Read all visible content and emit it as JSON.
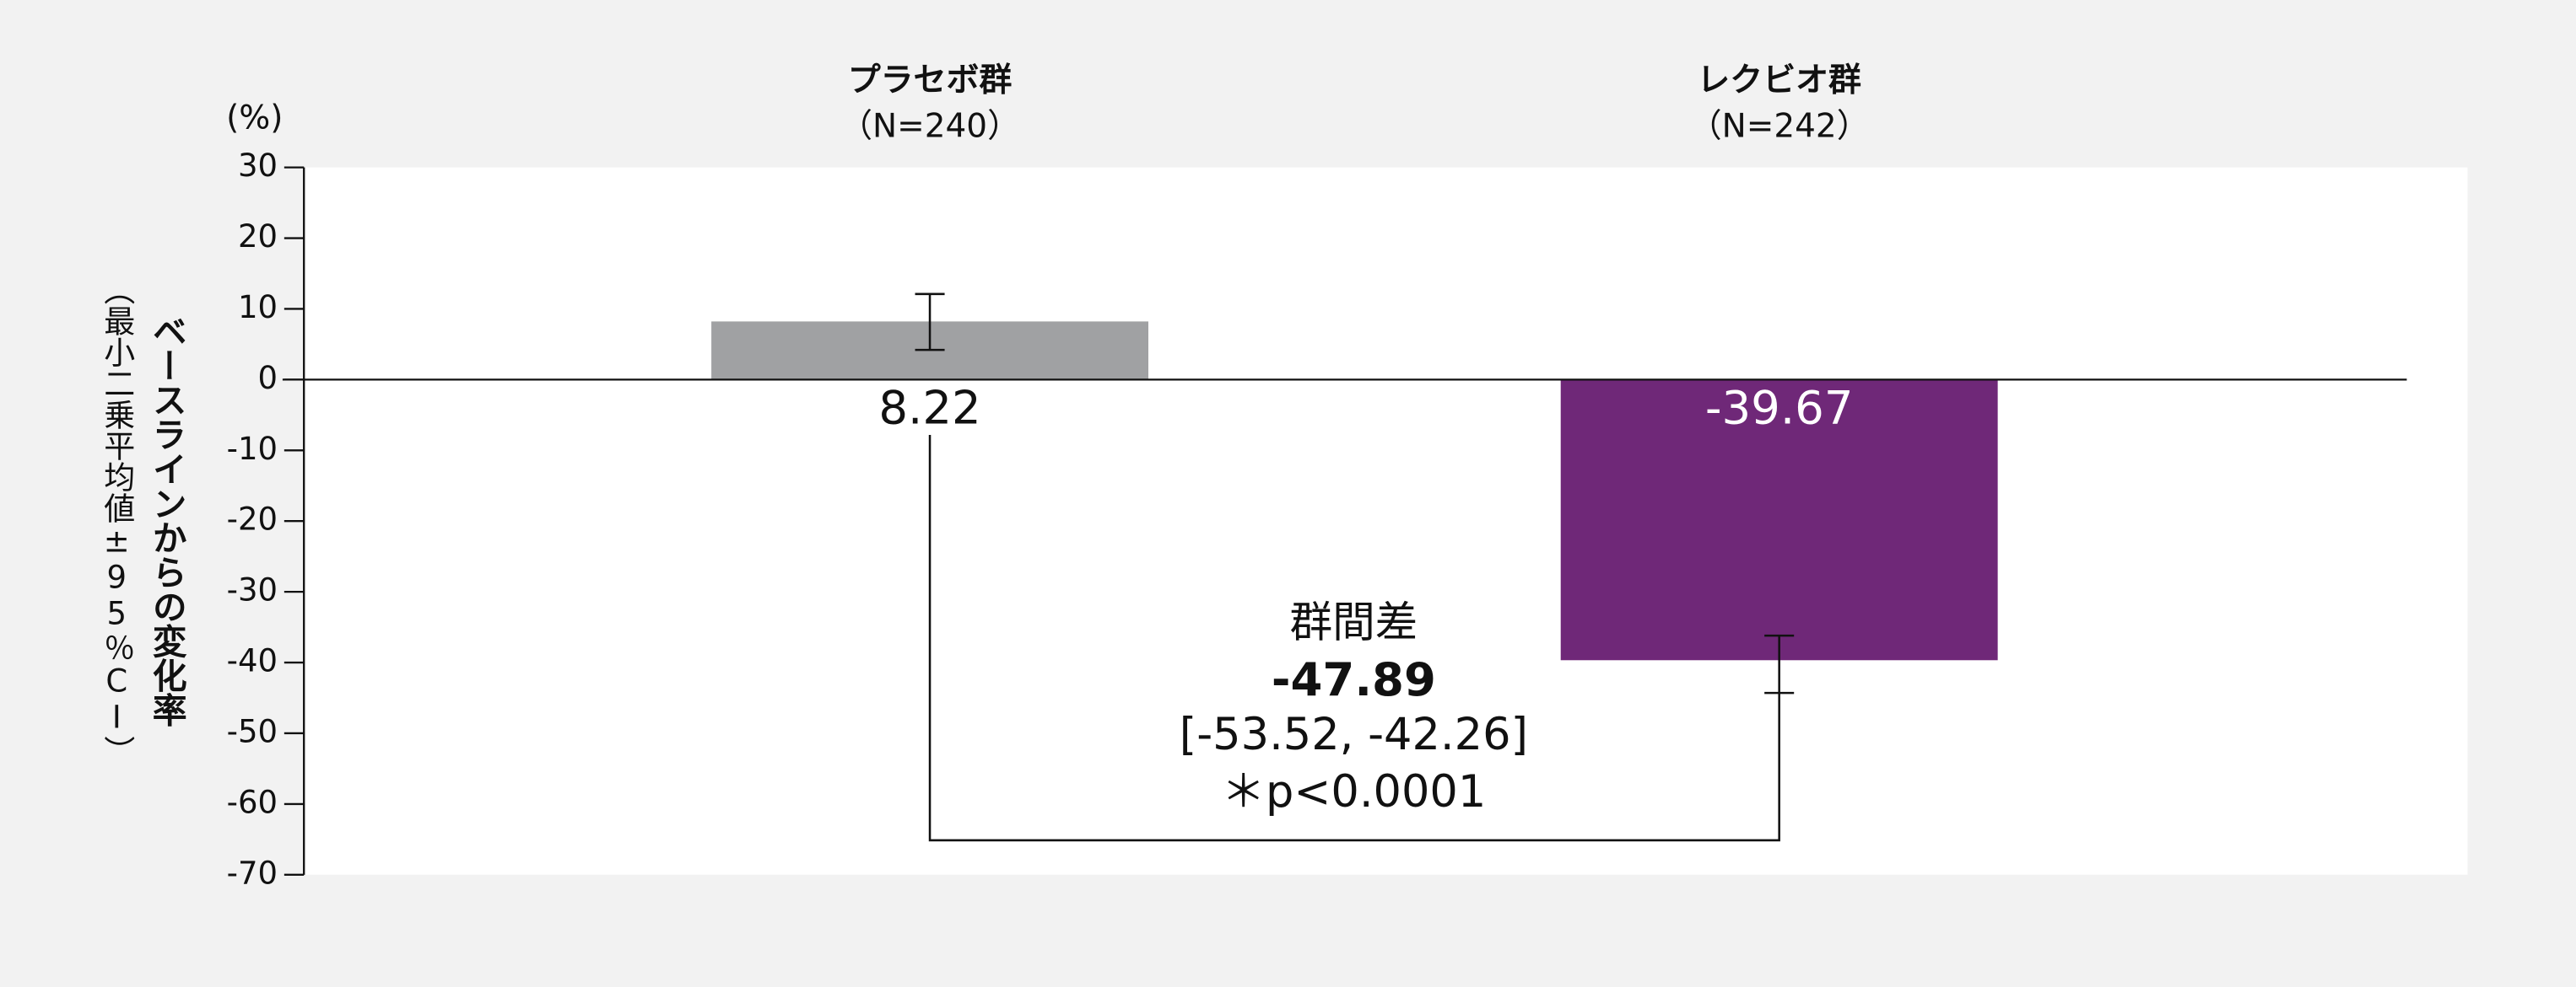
{
  "chart_data": {
    "type": "bar",
    "categories": [
      "プラセボ群",
      "レクビオ群"
    ],
    "category_sublabels": [
      "（N=240）",
      "（N=242）"
    ],
    "values": [
      8.22,
      -39.67
    ],
    "error_low": [
      4.2,
      -44.3
    ],
    "error_high": [
      12.1,
      -36.2
    ],
    "colors": [
      "#a0a1a3",
      "#6f2878"
    ],
    "label_colors": [
      "#111111",
      "#ffffff"
    ],
    "y_unit": "(%)",
    "ylabel": "ベースラインからの変化率",
    "ylabel_sub": "（最小二乗平均値±95％CI）",
    "ylim": [
      -70,
      30
    ],
    "yticks": [
      30,
      20,
      10,
      0,
      -10,
      -20,
      -30,
      -40,
      -50,
      -60,
      -70
    ],
    "difference": {
      "label": "群間差",
      "value": -47.89,
      "ci": "[-53.52, -42.26]",
      "p": "＊p<0.0001"
    }
  }
}
